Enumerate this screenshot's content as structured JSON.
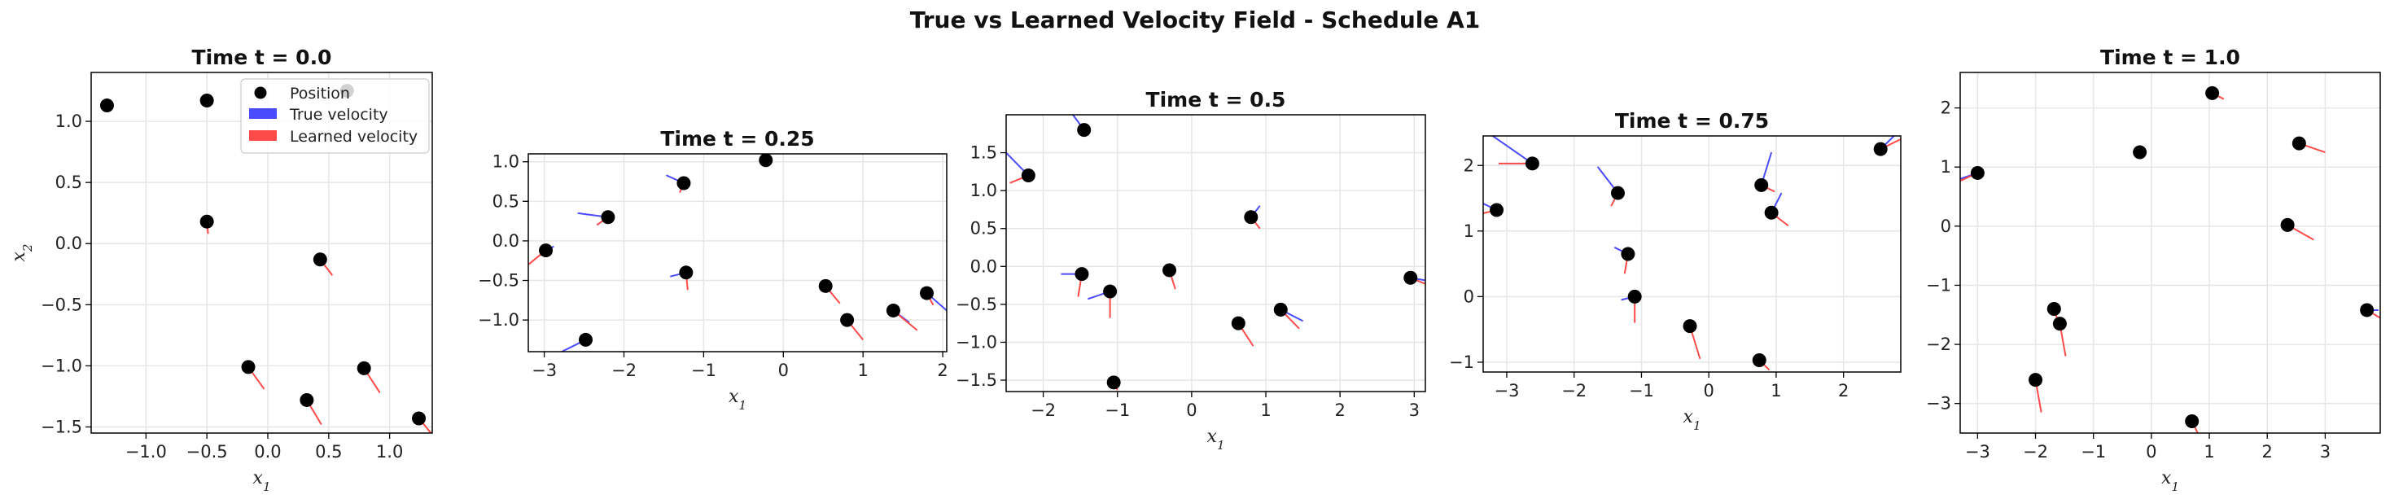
{
  "figure": {
    "title": "True vs Learned Velocity Field - Schedule A1"
  },
  "colors": {
    "position": "#000000",
    "true_velocity": "#4a4aff",
    "learned_velocity": "#ff4a4a",
    "grid": "#e6e6e6"
  },
  "legend": {
    "placement": "upper right of first panel",
    "entries": [
      "Position",
      "True velocity",
      "Learned velocity"
    ]
  },
  "chart_data": [
    {
      "type": "scatter",
      "title": "Time t = 0.0",
      "xlabel": "x1",
      "ylabel": "x2",
      "xlim": [
        -1.45,
        1.35
      ],
      "ylim": [
        -1.55,
        1.4
      ],
      "xticks": [
        -1.0,
        -0.5,
        0.0,
        0.5,
        1.0
      ],
      "xtick_labels": [
        "−1.0",
        "−0.5",
        "0.0",
        "0.5",
        "1.0"
      ],
      "yticks": [
        -1.5,
        -1.0,
        -0.5,
        0.0,
        0.5,
        1.0
      ],
      "ytick_labels": [
        "−1.5",
        "−1.0",
        "−0.5",
        "0.0",
        "0.5",
        "1.0"
      ],
      "grid": true,
      "legend": true,
      "points": [
        {
          "x": -1.32,
          "y": 1.13,
          "true": [
            0,
            0
          ],
          "learned": [
            0,
            0
          ]
        },
        {
          "x": 0.65,
          "y": 1.25,
          "true": [
            0,
            0
          ],
          "learned": [
            0,
            0
          ]
        },
        {
          "x": -0.5,
          "y": 1.17,
          "true": [
            0,
            0
          ],
          "learned": [
            0,
            0
          ]
        },
        {
          "x": -0.5,
          "y": 0.18,
          "true": [
            0,
            0
          ],
          "learned": [
            0.01,
            -0.1
          ]
        },
        {
          "x": 0.43,
          "y": -0.13,
          "true": [
            0,
            0
          ],
          "learned": [
            0.1,
            -0.13
          ]
        },
        {
          "x": -0.16,
          "y": -1.01,
          "true": [
            0,
            0
          ],
          "learned": [
            0.13,
            -0.18
          ]
        },
        {
          "x": 0.79,
          "y": -1.02,
          "true": [
            0,
            0
          ],
          "learned": [
            0.13,
            -0.2
          ]
        },
        {
          "x": 0.32,
          "y": -1.28,
          "true": [
            0,
            0
          ],
          "learned": [
            0.12,
            -0.2
          ]
        },
        {
          "x": 1.24,
          "y": -1.43,
          "true": [
            0,
            0
          ],
          "learned": [
            0.1,
            -0.12
          ]
        }
      ]
    },
    {
      "type": "scatter",
      "title": "Time t = 0.25",
      "xlabel": "x1",
      "ylabel": "",
      "xlim": [
        -3.2,
        2.05
      ],
      "ylim": [
        -1.4,
        1.1
      ],
      "xticks": [
        -3,
        -2,
        -1,
        0,
        1,
        2
      ],
      "xtick_labels": [
        "−3",
        "−2",
        "−1",
        "0",
        "1",
        "2"
      ],
      "yticks": [
        -1.0,
        -0.5,
        0.0,
        0.5,
        1.0
      ],
      "ytick_labels": [
        "−1.0",
        "−0.5",
        "0.0",
        "0.5",
        "1.0"
      ],
      "grid": true,
      "legend": false,
      "points": [
        {
          "x": -0.22,
          "y": 1.02,
          "true": [
            0,
            0
          ],
          "learned": [
            0,
            0
          ]
        },
        {
          "x": -1.25,
          "y": 0.73,
          "true": [
            -0.22,
            0.1
          ],
          "learned": [
            -0.05,
            -0.12
          ]
        },
        {
          "x": -2.2,
          "y": 0.3,
          "true": [
            -0.38,
            0.05
          ],
          "learned": [
            -0.14,
            -0.1
          ]
        },
        {
          "x": -2.98,
          "y": -0.12,
          "true": [
            0.1,
            0.05
          ],
          "learned": [
            -0.22,
            -0.18
          ]
        },
        {
          "x": -1.22,
          "y": -0.4,
          "true": [
            -0.2,
            -0.05
          ],
          "learned": [
            0.02,
            -0.22
          ]
        },
        {
          "x": 0.53,
          "y": -0.57,
          "true": [
            0,
            0
          ],
          "learned": [
            0.18,
            -0.22
          ]
        },
        {
          "x": 1.8,
          "y": -0.66,
          "true": [
            0.25,
            -0.22
          ],
          "learned": [
            0.08,
            -0.15
          ]
        },
        {
          "x": 0.8,
          "y": -1.0,
          "true": [
            0,
            0
          ],
          "learned": [
            0.2,
            -0.25
          ]
        },
        {
          "x": 1.38,
          "y": -0.88,
          "true": [
            0.2,
            -0.15
          ],
          "learned": [
            0.3,
            -0.25
          ]
        },
        {
          "x": -2.48,
          "y": -1.25,
          "true": [
            -0.3,
            -0.15
          ],
          "learned": [
            0,
            0
          ]
        }
      ]
    },
    {
      "type": "scatter",
      "title": "Time t = 0.5",
      "xlabel": "x1",
      "ylabel": "",
      "xlim": [
        -2.5,
        3.15
      ],
      "ylim": [
        -1.65,
        2.0
      ],
      "xticks": [
        -2,
        -1,
        0,
        1,
        2,
        3
      ],
      "xtick_labels": [
        "−2",
        "−1",
        "0",
        "1",
        "2",
        "3"
      ],
      "yticks": [
        -1.5,
        -1.0,
        -0.5,
        0.0,
        0.5,
        1.0,
        1.5
      ],
      "ytick_labels": [
        "−1.5",
        "−1.0",
        "−0.5",
        "0.0",
        "0.5",
        "1.0",
        "1.5"
      ],
      "grid": true,
      "legend": false,
      "points": [
        {
          "x": -1.45,
          "y": 1.8,
          "true": [
            -0.15,
            0.2
          ],
          "learned": [
            -0.05,
            0
          ]
        },
        {
          "x": -2.2,
          "y": 1.2,
          "true": [
            -0.3,
            0.3
          ],
          "learned": [
            -0.25,
            -0.1
          ]
        },
        {
          "x": 0.8,
          "y": 0.65,
          "true": [
            0.12,
            0.15
          ],
          "learned": [
            0.12,
            -0.15
          ]
        },
        {
          "x": -1.48,
          "y": -0.1,
          "true": [
            -0.28,
            0
          ],
          "learned": [
            -0.05,
            -0.3
          ]
        },
        {
          "x": -0.3,
          "y": -0.05,
          "true": [
            0,
            0
          ],
          "learned": [
            0.08,
            -0.25
          ]
        },
        {
          "x": -1.1,
          "y": -0.33,
          "true": [
            -0.3,
            -0.1
          ],
          "learned": [
            0,
            -0.35
          ]
        },
        {
          "x": 2.95,
          "y": -0.15,
          "true": [
            0.3,
            -0.05
          ],
          "learned": [
            0.2,
            -0.08
          ]
        },
        {
          "x": 1.2,
          "y": -0.57,
          "true": [
            0.3,
            -0.15
          ],
          "learned": [
            0.25,
            -0.25
          ]
        },
        {
          "x": 0.63,
          "y": -0.75,
          "true": [
            0,
            0
          ],
          "learned": [
            0.2,
            -0.3
          ]
        },
        {
          "x": -1.05,
          "y": -1.53,
          "true": [
            0,
            0
          ],
          "learned": [
            0.05,
            -0.1
          ]
        }
      ]
    },
    {
      "type": "scatter",
      "title": "Time t = 0.75",
      "xlabel": "x1",
      "ylabel": "",
      "xlim": [
        -3.35,
        2.85
      ],
      "ylim": [
        -1.15,
        2.45
      ],
      "xticks": [
        -3,
        -2,
        -1,
        0,
        1,
        2
      ],
      "xtick_labels": [
        "−3",
        "−2",
        "−1",
        "0",
        "1",
        "2"
      ],
      "yticks": [
        -1,
        0,
        1,
        2
      ],
      "ytick_labels": [
        "−1",
        "0",
        "1",
        "2"
      ],
      "grid": true,
      "legend": false,
      "points": [
        {
          "x": -2.62,
          "y": 2.03,
          "true": [
            -0.7,
            0.5
          ],
          "learned": [
            -0.5,
            0
          ]
        },
        {
          "x": 2.55,
          "y": 2.25,
          "true": [
            0.3,
            0.3
          ],
          "learned": [
            0.3,
            0.15
          ]
        },
        {
          "x": -1.35,
          "y": 1.58,
          "true": [
            -0.3,
            0.4
          ],
          "learned": [
            -0.1,
            -0.2
          ]
        },
        {
          "x": 0.78,
          "y": 1.7,
          "true": [
            0.15,
            0.5
          ],
          "learned": [
            0.2,
            -0.1
          ]
        },
        {
          "x": 0.93,
          "y": 1.28,
          "true": [
            0.15,
            0.3
          ],
          "learned": [
            0.25,
            -0.2
          ]
        },
        {
          "x": -3.15,
          "y": 1.32,
          "true": [
            -0.2,
            0.1
          ],
          "learned": [
            -0.2,
            -0.05
          ]
        },
        {
          "x": -1.2,
          "y": 0.65,
          "true": [
            -0.2,
            0.1
          ],
          "learned": [
            -0.05,
            -0.3
          ]
        },
        {
          "x": -1.1,
          "y": 0.0,
          "true": [
            -0.2,
            -0.05
          ],
          "learned": [
            0,
            -0.4
          ]
        },
        {
          "x": -0.28,
          "y": -0.45,
          "true": [
            0,
            0
          ],
          "learned": [
            0.15,
            -0.5
          ]
        },
        {
          "x": 0.75,
          "y": -0.97,
          "true": [
            0,
            0
          ],
          "learned": [
            0.15,
            -0.15
          ]
        }
      ]
    },
    {
      "type": "scatter",
      "title": "Time t = 1.0",
      "xlabel": "x1",
      "ylabel": "",
      "xlim": [
        -3.3,
        3.95
      ],
      "ylim": [
        -3.5,
        2.6
      ],
      "xticks": [
        -3,
        -2,
        -1,
        0,
        1,
        2,
        3
      ],
      "xtick_labels": [
        "−3",
        "−2",
        "−1",
        "0",
        "1",
        "2",
        "3"
      ],
      "yticks": [
        -3,
        -2,
        -1,
        0,
        1,
        2
      ],
      "ytick_labels": [
        "−3",
        "−2",
        "−1",
        "0",
        "1",
        "2"
      ],
      "grid": true,
      "legend": false,
      "points": [
        {
          "x": 1.05,
          "y": 2.25,
          "true": [
            0,
            0
          ],
          "learned": [
            0.2,
            -0.1
          ]
        },
        {
          "x": 2.55,
          "y": 1.4,
          "true": [
            0,
            0
          ],
          "learned": [
            0.45,
            -0.15
          ]
        },
        {
          "x": -0.2,
          "y": 1.25,
          "true": [
            0,
            0
          ],
          "learned": [
            0,
            0
          ]
        },
        {
          "x": -3.0,
          "y": 0.9,
          "true": [
            -0.3,
            -0.1
          ],
          "learned": [
            -0.45,
            -0.2
          ]
        },
        {
          "x": 2.35,
          "y": 0.02,
          "true": [
            0,
            0
          ],
          "learned": [
            0.45,
            -0.25
          ]
        },
        {
          "x": 3.72,
          "y": -1.42,
          "true": [
            0.2,
            0
          ],
          "learned": [
            0.35,
            -0.2
          ]
        },
        {
          "x": -1.68,
          "y": -1.4,
          "true": [
            0,
            0
          ],
          "learned": [
            0.1,
            -0.3
          ]
        },
        {
          "x": -1.58,
          "y": -1.65,
          "true": [
            0,
            0
          ],
          "learned": [
            0.1,
            -0.55
          ]
        },
        {
          "x": -2.0,
          "y": -2.6,
          "true": [
            0,
            0
          ],
          "learned": [
            0.1,
            -0.55
          ]
        },
        {
          "x": 0.7,
          "y": -3.3,
          "true": [
            0,
            0
          ],
          "learned": [
            0.15,
            -0.3
          ]
        }
      ]
    }
  ]
}
